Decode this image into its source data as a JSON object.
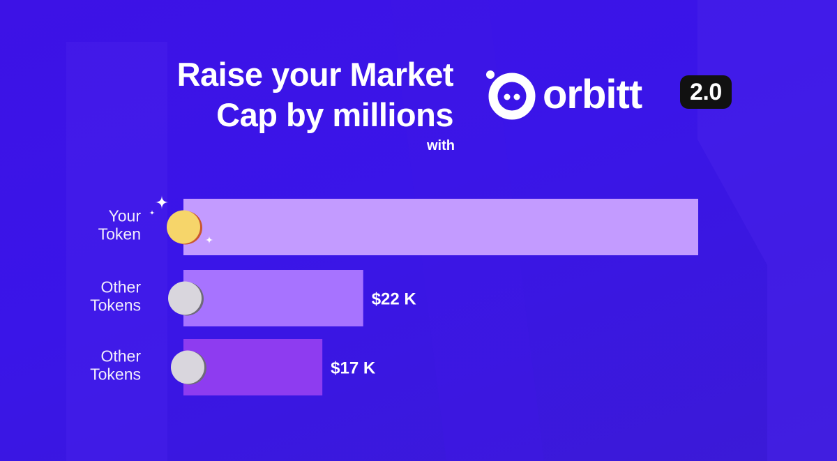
{
  "header": {
    "headline_line1": "Raise your Market",
    "headline_line2": "Cap by millions",
    "with_label": "with"
  },
  "brand": {
    "name": "orbitt",
    "version": "2.0"
  },
  "colors": {
    "background": "#3b14e4",
    "bar_your_token": "#c39bff",
    "bar_other_1": "#a773ff",
    "bar_other_2": "#8e3cf0",
    "coin_gold": "#f6d56a",
    "coin_silver": "#d9d6dd"
  },
  "chart_data": {
    "type": "bar",
    "orientation": "horizontal",
    "categories": [
      "Your Token",
      "Other Tokens",
      "Other Tokens"
    ],
    "category_lines": [
      [
        "Your",
        "Token"
      ],
      [
        "Other",
        "Tokens"
      ],
      [
        "Other",
        "Tokens"
      ]
    ],
    "values": [
      63,
      22,
      17
    ],
    "value_labels": [
      "",
      "$22 K",
      "$17 K"
    ],
    "unit": "$K",
    "xlim": [
      0,
      63
    ],
    "grid": false,
    "icons": [
      "gold-coin-icon",
      "silver-coin-icon",
      "silver-coin-icon"
    ]
  }
}
